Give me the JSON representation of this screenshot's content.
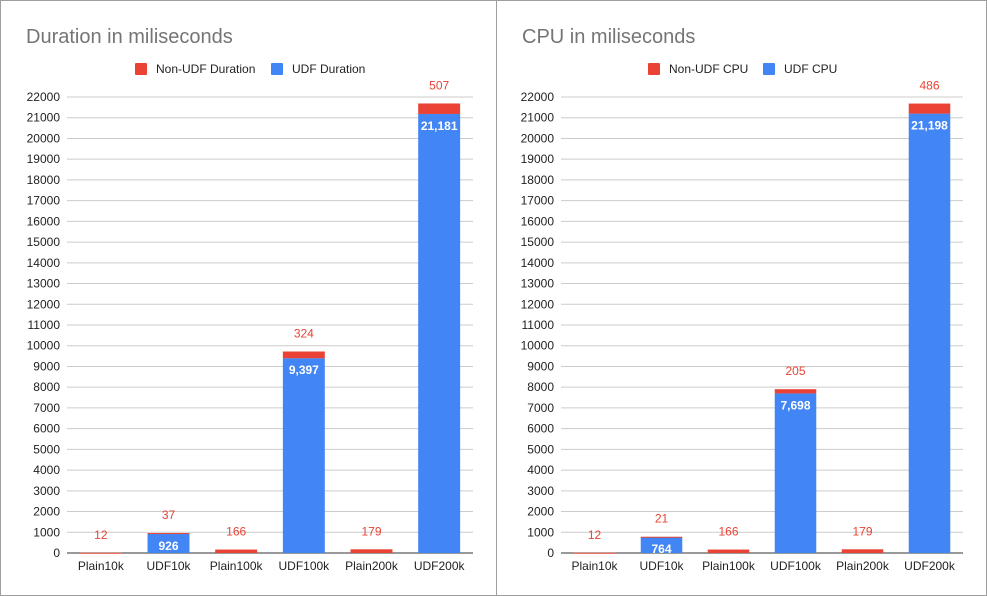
{
  "chart_data": [
    {
      "type": "bar",
      "stacked": true,
      "title": "Duration in miliseconds",
      "categories": [
        "Plain10k",
        "UDF10k",
        "Plain100k",
        "UDF100k",
        "Plain200k",
        "UDF200k"
      ],
      "series": [
        {
          "name": "Non-UDF Duration",
          "color": "#ea4335",
          "values": [
            12,
            37,
            166,
            324,
            179,
            507
          ],
          "labels": [
            "12",
            "37",
            "166",
            "324",
            "179",
            "507"
          ]
        },
        {
          "name": "UDF Duration",
          "color": "#4285f4",
          "values": [
            0,
            926,
            0,
            9397,
            0,
            21181
          ],
          "labels": [
            "",
            "926",
            "",
            "9,397",
            "",
            "21,181"
          ]
        }
      ],
      "ylim": [
        0,
        22000
      ],
      "yticks": [
        "0",
        "1000",
        "2000",
        "3000",
        "4000",
        "5000",
        "6000",
        "7000",
        "8000",
        "9000",
        "10000",
        "11000",
        "12000",
        "13000",
        "14000",
        "15000",
        "16000",
        "17000",
        "18000",
        "19000",
        "20000",
        "21000",
        "22000"
      ],
      "legend_position": "top",
      "grid": true
    },
    {
      "type": "bar",
      "stacked": true,
      "title": "CPU in miliseconds",
      "categories": [
        "Plain10k",
        "UDF10k",
        "Plain100k",
        "UDF100k",
        "Plain200k",
        "UDF200k"
      ],
      "series": [
        {
          "name": "Non-UDF CPU",
          "color": "#ea4335",
          "values": [
            12,
            21,
            166,
            205,
            179,
            486
          ],
          "labels": [
            "12",
            "21",
            "166",
            "205",
            "179",
            "486"
          ]
        },
        {
          "name": "UDF CPU",
          "color": "#4285f4",
          "values": [
            0,
            764,
            0,
            7698,
            0,
            21198
          ],
          "labels": [
            "",
            "764",
            "",
            "7,698",
            "",
            "21,198"
          ]
        }
      ],
      "ylim": [
        0,
        22000
      ],
      "yticks": [
        "0",
        "1000",
        "2000",
        "3000",
        "4000",
        "5000",
        "6000",
        "7000",
        "8000",
        "9000",
        "10000",
        "11000",
        "12000",
        "13000",
        "14000",
        "15000",
        "16000",
        "17000",
        "18000",
        "19000",
        "20000",
        "21000",
        "22000"
      ],
      "legend_position": "top",
      "grid": true
    }
  ]
}
